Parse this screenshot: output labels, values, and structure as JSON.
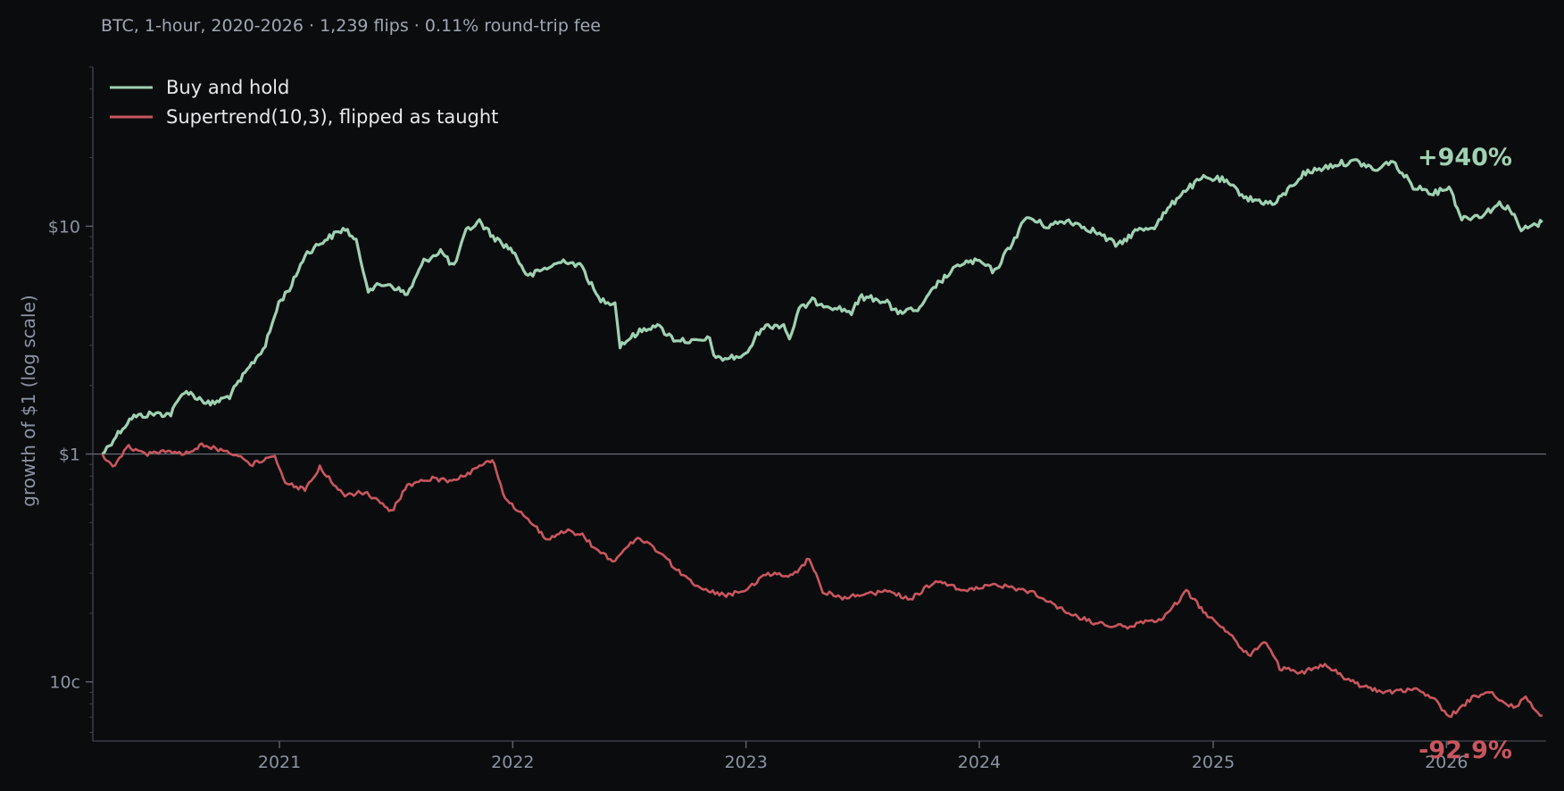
{
  "chart_data": {
    "type": "line",
    "subtitle": "BTC, 1-hour, 2020-2026  ·  1,239 flips  ·  0.11% round-trip fee",
    "title": "",
    "xlabel": "",
    "ylabel": "growth of $1 (log scale)",
    "y_scale": "log",
    "ylim": [
      0.055,
      50
    ],
    "xlim": [
      "2020-03-15",
      "2026-06-06"
    ],
    "x_ticks": [
      {
        "label": "2021",
        "date": "2021-01-01"
      },
      {
        "label": "2022",
        "date": "2022-01-01"
      },
      {
        "label": "2023",
        "date": "2023-01-01"
      },
      {
        "label": "2024",
        "date": "2024-01-01"
      },
      {
        "label": "2025",
        "date": "2025-01-01"
      },
      {
        "label": "2026",
        "date": "2026-01-01"
      }
    ],
    "y_ticks": [
      {
        "label": "$10",
        "value": 10
      },
      {
        "label": "$1",
        "value": 1
      },
      {
        "label": "10c",
        "value": 0.1
      }
    ],
    "reference_line": 1,
    "grid": false,
    "legend_position": "top-left",
    "series": [
      {
        "name": "Buy and hold",
        "color": "#9fd1b3",
        "end_label": "+940%",
        "points": [
          [
            "2020-03-30",
            1.0
          ],
          [
            "2020-04-20",
            1.2
          ],
          [
            "2020-05-15",
            1.45
          ],
          [
            "2020-06-15",
            1.5
          ],
          [
            "2020-07-15",
            1.5
          ],
          [
            "2020-08-05",
            1.9
          ],
          [
            "2020-09-15",
            1.65
          ],
          [
            "2020-10-15",
            1.8
          ],
          [
            "2020-11-15",
            2.4
          ],
          [
            "2020-12-10",
            3.0
          ],
          [
            "2020-12-31",
            4.6
          ],
          [
            "2021-01-20",
            5.5
          ],
          [
            "2021-02-10",
            7.5
          ],
          [
            "2021-03-10",
            8.6
          ],
          [
            "2021-04-14",
            9.8
          ],
          [
            "2021-05-01",
            8.5
          ],
          [
            "2021-05-20",
            5.3
          ],
          [
            "2021-06-20",
            5.6
          ],
          [
            "2021-07-20",
            5.0
          ],
          [
            "2021-08-15",
            7.0
          ],
          [
            "2021-09-10",
            7.8
          ],
          [
            "2021-10-01",
            6.6
          ],
          [
            "2021-10-20",
            9.5
          ],
          [
            "2021-11-10",
            10.5
          ],
          [
            "2021-12-01",
            9.0
          ],
          [
            "2022-01-01",
            7.8
          ],
          [
            "2022-01-25",
            6.0
          ],
          [
            "2022-02-20",
            6.5
          ],
          [
            "2022-03-25",
            7.1
          ],
          [
            "2022-04-20",
            6.6
          ],
          [
            "2022-05-15",
            4.8
          ],
          [
            "2022-06-10",
            4.6
          ],
          [
            "2022-06-18",
            3.0
          ],
          [
            "2022-07-15",
            3.4
          ],
          [
            "2022-08-12",
            3.7
          ],
          [
            "2022-09-10",
            3.2
          ],
          [
            "2022-10-15",
            3.1
          ],
          [
            "2022-11-05",
            3.2
          ],
          [
            "2022-11-15",
            2.6
          ],
          [
            "2022-12-31",
            2.7
          ],
          [
            "2023-01-25",
            3.6
          ],
          [
            "2023-03-01",
            3.7
          ],
          [
            "2023-03-10",
            3.2
          ],
          [
            "2023-03-25",
            4.3
          ],
          [
            "2023-04-15",
            4.7
          ],
          [
            "2023-05-20",
            4.4
          ],
          [
            "2023-06-15",
            4.2
          ],
          [
            "2023-07-01",
            4.9
          ],
          [
            "2023-08-10",
            4.7
          ],
          [
            "2023-08-20",
            4.2
          ],
          [
            "2023-09-30",
            4.3
          ],
          [
            "2023-10-25",
            5.5
          ],
          [
            "2023-12-05",
            6.9
          ],
          [
            "2024-01-01",
            7.0
          ],
          [
            "2024-01-25",
            6.3
          ],
          [
            "2024-02-25",
            8.8
          ],
          [
            "2024-03-15",
            11.0
          ],
          [
            "2024-04-15",
            10.0
          ],
          [
            "2024-05-20",
            10.6
          ],
          [
            "2024-06-30",
            9.5
          ],
          [
            "2024-08-05",
            8.2
          ],
          [
            "2024-09-01",
            9.5
          ],
          [
            "2024-10-01",
            10.0
          ],
          [
            "2024-11-12",
            14.0
          ],
          [
            "2024-12-17",
            16.3
          ],
          [
            "2025-01-15",
            16.0
          ],
          [
            "2025-02-25",
            13.2
          ],
          [
            "2025-04-07",
            12.5
          ],
          [
            "2025-05-22",
            17.0
          ],
          [
            "2025-07-14",
            18.8
          ],
          [
            "2025-08-14",
            19.2
          ],
          [
            "2025-09-15",
            17.5
          ],
          [
            "2025-10-06",
            19.5
          ],
          [
            "2025-11-10",
            15.0
          ],
          [
            "2025-12-15",
            14.0
          ],
          [
            "2026-01-05",
            15.0
          ],
          [
            "2026-01-25",
            10.8
          ],
          [
            "2026-02-25",
            11.2
          ],
          [
            "2026-03-25",
            12.5
          ],
          [
            "2026-04-10",
            12.0
          ],
          [
            "2026-04-28",
            9.6
          ],
          [
            "2026-05-15",
            10.0
          ],
          [
            "2026-05-31",
            10.4
          ]
        ]
      },
      {
        "name": "Supertrend(10,3), flipped as taught",
        "color": "#c9565f",
        "end_label": "-92.9%",
        "points": [
          [
            "2020-03-30",
            1.0
          ],
          [
            "2020-04-15",
            0.88
          ],
          [
            "2020-05-10",
            1.08
          ],
          [
            "2020-06-05",
            1.0
          ],
          [
            "2020-07-10",
            1.02
          ],
          [
            "2020-08-05",
            1.0
          ],
          [
            "2020-09-05",
            1.1
          ],
          [
            "2020-10-01",
            1.04
          ],
          [
            "2020-10-25",
            1.0
          ],
          [
            "2020-11-20",
            0.9
          ],
          [
            "2020-12-25",
            0.98
          ],
          [
            "2021-01-10",
            0.74
          ],
          [
            "2021-02-10",
            0.7
          ],
          [
            "2021-03-05",
            0.88
          ],
          [
            "2021-04-10",
            0.66
          ],
          [
            "2021-05-15",
            0.68
          ],
          [
            "2021-06-25",
            0.56
          ],
          [
            "2021-07-20",
            0.72
          ],
          [
            "2021-08-25",
            0.78
          ],
          [
            "2021-10-01",
            0.76
          ],
          [
            "2021-11-10",
            0.88
          ],
          [
            "2021-11-30",
            0.95
          ],
          [
            "2021-12-20",
            0.63
          ],
          [
            "2022-01-25",
            0.52
          ],
          [
            "2022-02-25",
            0.42
          ],
          [
            "2022-03-25",
            0.46
          ],
          [
            "2022-04-20",
            0.44
          ],
          [
            "2022-05-15",
            0.37
          ],
          [
            "2022-06-10",
            0.34
          ],
          [
            "2022-07-15",
            0.43
          ],
          [
            "2022-08-20",
            0.37
          ],
          [
            "2022-09-25",
            0.29
          ],
          [
            "2022-10-20",
            0.26
          ],
          [
            "2022-12-01",
            0.24
          ],
          [
            "2022-12-31",
            0.25
          ],
          [
            "2023-02-01",
            0.3
          ],
          [
            "2023-03-15",
            0.29
          ],
          [
            "2023-04-10",
            0.35
          ],
          [
            "2023-05-01",
            0.25
          ],
          [
            "2023-06-01",
            0.235
          ],
          [
            "2023-07-01",
            0.24
          ],
          [
            "2023-08-10",
            0.25
          ],
          [
            "2023-09-15",
            0.23
          ],
          [
            "2023-10-25",
            0.28
          ],
          [
            "2023-12-10",
            0.25
          ],
          [
            "2024-01-20",
            0.27
          ],
          [
            "2024-03-20",
            0.25
          ],
          [
            "2024-05-20",
            0.2
          ],
          [
            "2024-07-01",
            0.18
          ],
          [
            "2024-08-20",
            0.175
          ],
          [
            "2024-10-15",
            0.19
          ],
          [
            "2024-11-20",
            0.25
          ],
          [
            "2024-12-20",
            0.2
          ],
          [
            "2025-01-20",
            0.17
          ],
          [
            "2025-02-25",
            0.13
          ],
          [
            "2025-03-25",
            0.15
          ],
          [
            "2025-04-15",
            0.115
          ],
          [
            "2025-05-20",
            0.11
          ],
          [
            "2025-06-25",
            0.12
          ],
          [
            "2025-07-25",
            0.105
          ],
          [
            "2025-08-25",
            0.095
          ],
          [
            "2025-10-01",
            0.09
          ],
          [
            "2025-11-15",
            0.093
          ],
          [
            "2025-12-10",
            0.086
          ],
          [
            "2026-01-05",
            0.07
          ],
          [
            "2026-02-10",
            0.085
          ],
          [
            "2026-03-10",
            0.09
          ],
          [
            "2026-04-01",
            0.08
          ],
          [
            "2026-04-20",
            0.078
          ],
          [
            "2026-05-05",
            0.086
          ],
          [
            "2026-05-20",
            0.074
          ],
          [
            "2026-05-31",
            0.071
          ]
        ]
      }
    ]
  }
}
